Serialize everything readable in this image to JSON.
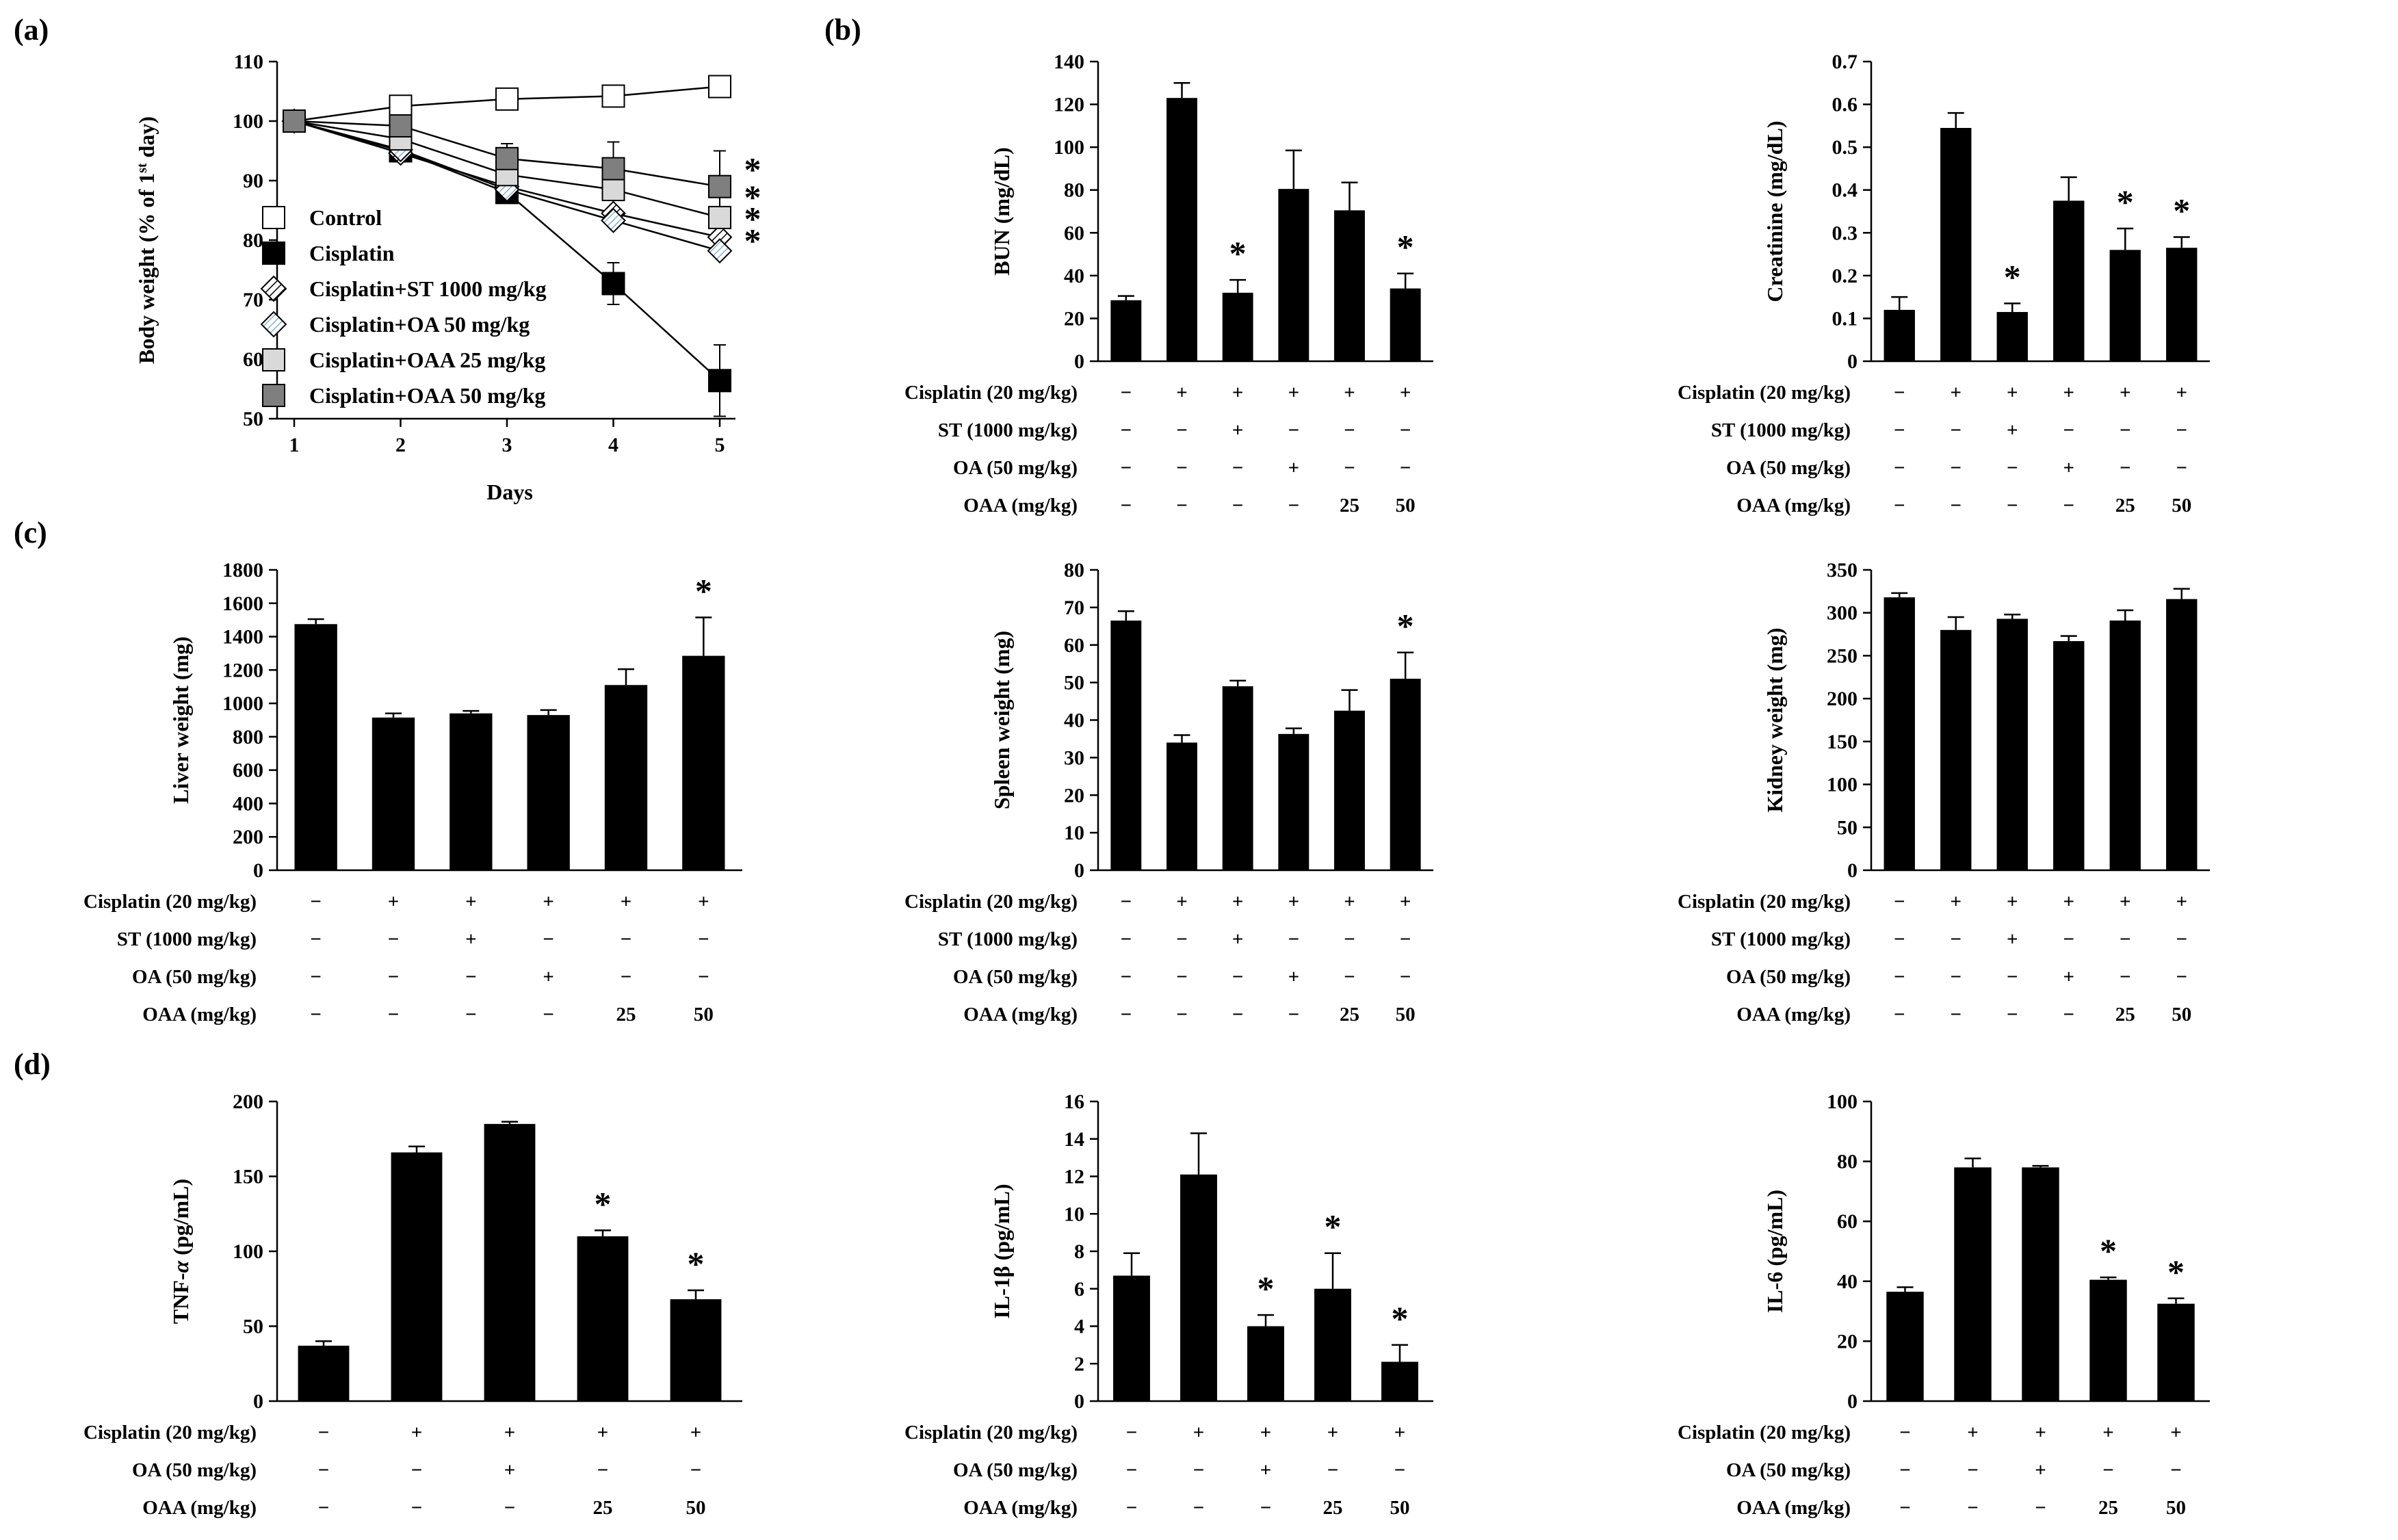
{
  "panel_labels": [
    "(a)",
    "(b)",
    "(c)",
    "(d)"
  ],
  "chart_data": [
    {
      "type": "line",
      "panel": "(a)",
      "xlabel": "Days",
      "ylabel": "Body weight (% of 1st day)",
      "ylabel_superscript_parts": [
        "Body weight (% of 1",
        "st",
        " day)"
      ],
      "x": [
        1,
        2,
        3,
        4,
        5
      ],
      "xticks": [
        "1",
        "2",
        "3",
        "4",
        "5"
      ],
      "ylim": [
        50,
        110
      ],
      "yticks": [
        "50",
        "60",
        "70",
        "80",
        "90",
        "100",
        "110"
      ],
      "series": [
        {
          "name": "Control",
          "marker": "square-white",
          "values": [
            100,
            102.5,
            103.7,
            104.2,
            105.8
          ],
          "err": [
            0,
            0.5,
            0.5,
            0.6,
            0.6
          ]
        },
        {
          "name": "Cisplatin",
          "marker": "square-black",
          "values": [
            100,
            95,
            88,
            72.7,
            56.4
          ],
          "err": [
            0,
            1,
            1,
            3.5,
            6
          ]
        },
        {
          "name": "Cisplatin+ST 1000 mg/kg",
          "marker": "diamond-hatch",
          "values": [
            100,
            94.6,
            89,
            84.5,
            80.5
          ],
          "err": [
            0,
            1,
            1,
            1,
            1
          ]
        },
        {
          "name": "Cisplatin+OA 50 mg/kg",
          "marker": "diamond-blue",
          "values": [
            100,
            95.2,
            88.5,
            83.3,
            78.2
          ],
          "err": [
            0,
            1,
            1,
            1,
            1
          ]
        },
        {
          "name": "Cisplatin+OAA 25 mg/kg",
          "marker": "square-light",
          "values": [
            100,
            97,
            91,
            88.5,
            83.8
          ],
          "err": [
            0,
            1,
            1,
            1,
            1
          ]
        },
        {
          "name": "Cisplatin+OAA 50 mg/kg",
          "marker": "square-gray",
          "values": [
            100,
            99.2,
            93.7,
            92,
            89
          ],
          "err": [
            0,
            1,
            2.5,
            4.5,
            6
          ]
        }
      ],
      "sig_labels": [
        "*",
        "*",
        "*",
        "*"
      ]
    },
    {
      "type": "bar",
      "panel": "(b)",
      "ylabel": "BUN (mg/dL)",
      "ylim": [
        0,
        140
      ],
      "yticks": [
        "0",
        "20",
        "40",
        "60",
        "80",
        "100",
        "120",
        "140"
      ],
      "values": [
        28.5,
        123,
        32,
        80.5,
        70.5,
        34
      ],
      "err": [
        2,
        7,
        6,
        18,
        13,
        7
      ],
      "sig": [
        "",
        "",
        "*",
        "",
        "",
        "*"
      ]
    },
    {
      "type": "bar",
      "panel": "(b)",
      "ylabel": "Creatinine (mg/dL)",
      "ylim": [
        0,
        0.7
      ],
      "yticks": [
        "0",
        "0.1",
        "0.2",
        "0.3",
        "0.4",
        "0.5",
        "0.6",
        "0.7"
      ],
      "values": [
        0.12,
        0.545,
        0.115,
        0.375,
        0.26,
        0.265
      ],
      "err": [
        0.03,
        0.035,
        0.02,
        0.055,
        0.05,
        0.025
      ],
      "sig": [
        "",
        "",
        "*",
        "",
        "*",
        "*"
      ]
    },
    {
      "type": "bar",
      "panel": "(c)",
      "ylabel": "Liver weight (mg)",
      "ylim": [
        0,
        1800
      ],
      "yticks": [
        "0",
        "200",
        "400",
        "600",
        "800",
        "1000",
        "1200",
        "1400",
        "1600",
        "1800"
      ],
      "values": [
        1475,
        915,
        940,
        930,
        1110,
        1285
      ],
      "err": [
        30,
        25,
        15,
        30,
        95,
        230
      ],
      "sig": [
        "",
        "",
        "",
        "",
        "",
        "*"
      ]
    },
    {
      "type": "bar",
      "panel": "(c)",
      "ylabel": "Spleen weight (mg)",
      "ylim": [
        0,
        80
      ],
      "yticks": [
        "0",
        "10",
        "20",
        "30",
        "40",
        "50",
        "60",
        "70",
        "80"
      ],
      "values": [
        66.5,
        34,
        49,
        36.3,
        42.5,
        51
      ],
      "err": [
        2.5,
        2,
        1.5,
        1.5,
        5.5,
        7
      ],
      "sig": [
        "",
        "",
        "",
        "",
        "",
        "*"
      ]
    },
    {
      "type": "bar",
      "panel": "(c)",
      "ylabel": "Kidney weight (mg)",
      "ylim": [
        0,
        350
      ],
      "yticks": [
        "0",
        "50",
        "100",
        "150",
        "200",
        "250",
        "300",
        "350"
      ],
      "values": [
        318,
        280,
        293,
        267,
        291,
        316
      ],
      "err": [
        5,
        15,
        5,
        6,
        12,
        12
      ],
      "sig": [
        "",
        "",
        "",
        "",
        "",
        ""
      ]
    },
    {
      "type": "bar",
      "panel": "(d)",
      "ylabel": "TNF-α (pg/mL)",
      "ylabel_parts": [
        "TNF-",
        "α",
        " (pg/mL)"
      ],
      "ylim": [
        0,
        200
      ],
      "yticks": [
        "0",
        "50",
        "100",
        "150",
        "200"
      ],
      "values": [
        37,
        166,
        185,
        110,
        68
      ],
      "err": [
        3,
        4,
        1.5,
        4,
        6
      ],
      "sig": [
        "",
        "",
        "",
        "*",
        "*"
      ]
    },
    {
      "type": "bar",
      "panel": "(d)",
      "ylabel": "IL-1β (pg/mL)",
      "ylim": [
        0,
        16
      ],
      "yticks": [
        "0",
        "2",
        "4",
        "6",
        "8",
        "10",
        "12",
        "14",
        "16"
      ],
      "values": [
        6.7,
        12.1,
        4,
        6,
        2.1
      ],
      "err": [
        1.2,
        2.2,
        0.6,
        1.9,
        0.9
      ],
      "sig": [
        "",
        "",
        "*",
        "*",
        "*"
      ]
    },
    {
      "type": "bar",
      "panel": "(d)",
      "ylabel": "IL-6 (pg/mL)",
      "ylim": [
        0,
        100
      ],
      "yticks": [
        "0",
        "20",
        "40",
        "60",
        "80",
        "100"
      ],
      "values": [
        36.5,
        78,
        78,
        40.5,
        32.5
      ],
      "err": [
        1.5,
        3,
        0.5,
        0.8,
        1.8
      ],
      "sig": [
        "",
        "",
        "",
        "*",
        "*"
      ]
    }
  ],
  "treatment_tables": {
    "six": {
      "rows": [
        "Cisplatin (20 mg/kg)",
        "ST (1000 mg/kg)",
        "OA (50 mg/kg)",
        "OAA (mg/kg)"
      ],
      "cells": [
        [
          "−",
          "+",
          "+",
          "+",
          "+",
          "+"
        ],
        [
          "−",
          "−",
          "+",
          "−",
          "−",
          "−"
        ],
        [
          "−",
          "−",
          "−",
          "+",
          "−",
          "−"
        ],
        [
          "−",
          "−",
          "−",
          "−",
          "25",
          "50"
        ]
      ]
    },
    "five": {
      "rows": [
        "Cisplatin (20 mg/kg)",
        "OA (50 mg/kg)",
        "OAA (mg/kg)"
      ],
      "cells": [
        [
          "−",
          "+",
          "+",
          "+",
          "+"
        ],
        [
          "−",
          "−",
          "+",
          "−",
          "−"
        ],
        [
          "−",
          "−",
          "−",
          "25",
          "50"
        ]
      ]
    }
  }
}
